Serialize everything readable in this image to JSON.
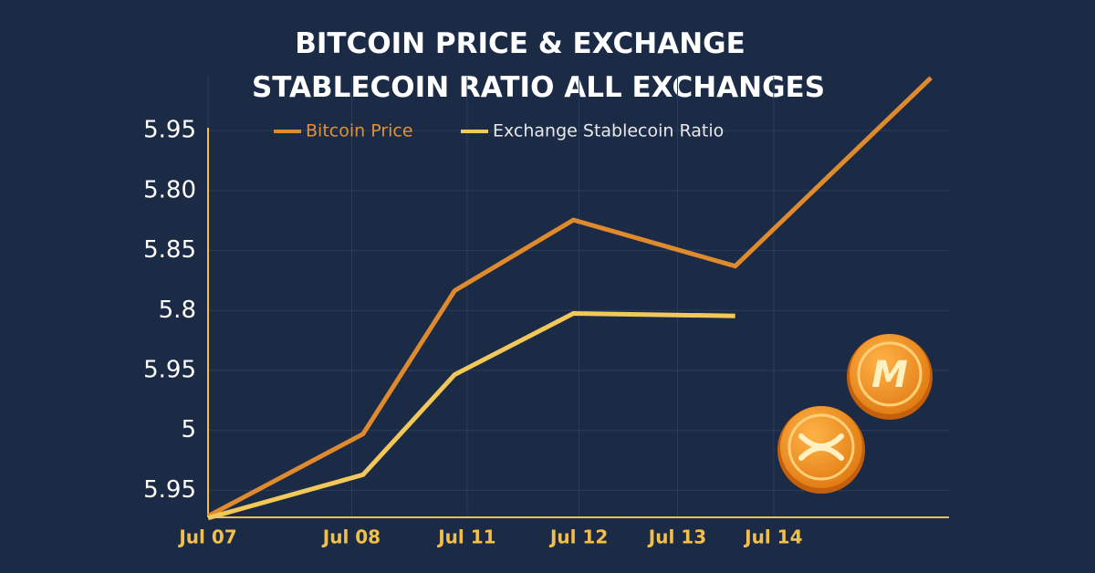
{
  "chart_data": {
    "type": "line",
    "title_lines": [
      "BITCOIN PRICE & EXCHANGE",
      "STABLECOIN RATIO  ALL EXCHANGES"
    ],
    "xlim": [
      0,
      6.55
    ],
    "xticks": [
      {
        "value": 0,
        "label": "Jul 07"
      },
      {
        "value": 1.27,
        "label": "Jul 08"
      },
      {
        "value": 2.29,
        "label": "Jul 11"
      },
      {
        "value": 3.28,
        "label": "Jul 12"
      },
      {
        "value": 4.15,
        "label": "Jul 13"
      },
      {
        "value": 5,
        "label": "Jul 14"
      }
    ],
    "ylim": [
      0.55,
      7.9
    ],
    "yticks": [
      {
        "value": 7,
        "label": "5.95"
      },
      {
        "value": 6,
        "label": "5.80"
      },
      {
        "value": 5,
        "label": "5.85"
      },
      {
        "value": 4,
        "label": "5.8"
      },
      {
        "value": 3,
        "label": "5.95"
      },
      {
        "value": 2,
        "label": "5"
      },
      {
        "value": 1,
        "label": "5.95"
      }
    ],
    "grid": true,
    "series": [
      {
        "name": "Bitcoin Price",
        "color": "#e08a2e",
        "text_color": "#e0913a",
        "x": [
          0,
          1.37,
          2.18,
          3.23,
          4.66,
          6.39
        ],
        "values": [
          0.57,
          1.94,
          4.33,
          5.51,
          4.74,
          7.88
        ]
      },
      {
        "name": "Exchange Stablecoin Ratio",
        "color": "#f2c85a",
        "text_color": "#e8e8e8",
        "x": [
          0,
          1.37,
          2.18,
          3.23,
          4.66
        ],
        "values": [
          0.54,
          1.26,
          2.93,
          3.95,
          3.91
        ]
      }
    ]
  }
}
